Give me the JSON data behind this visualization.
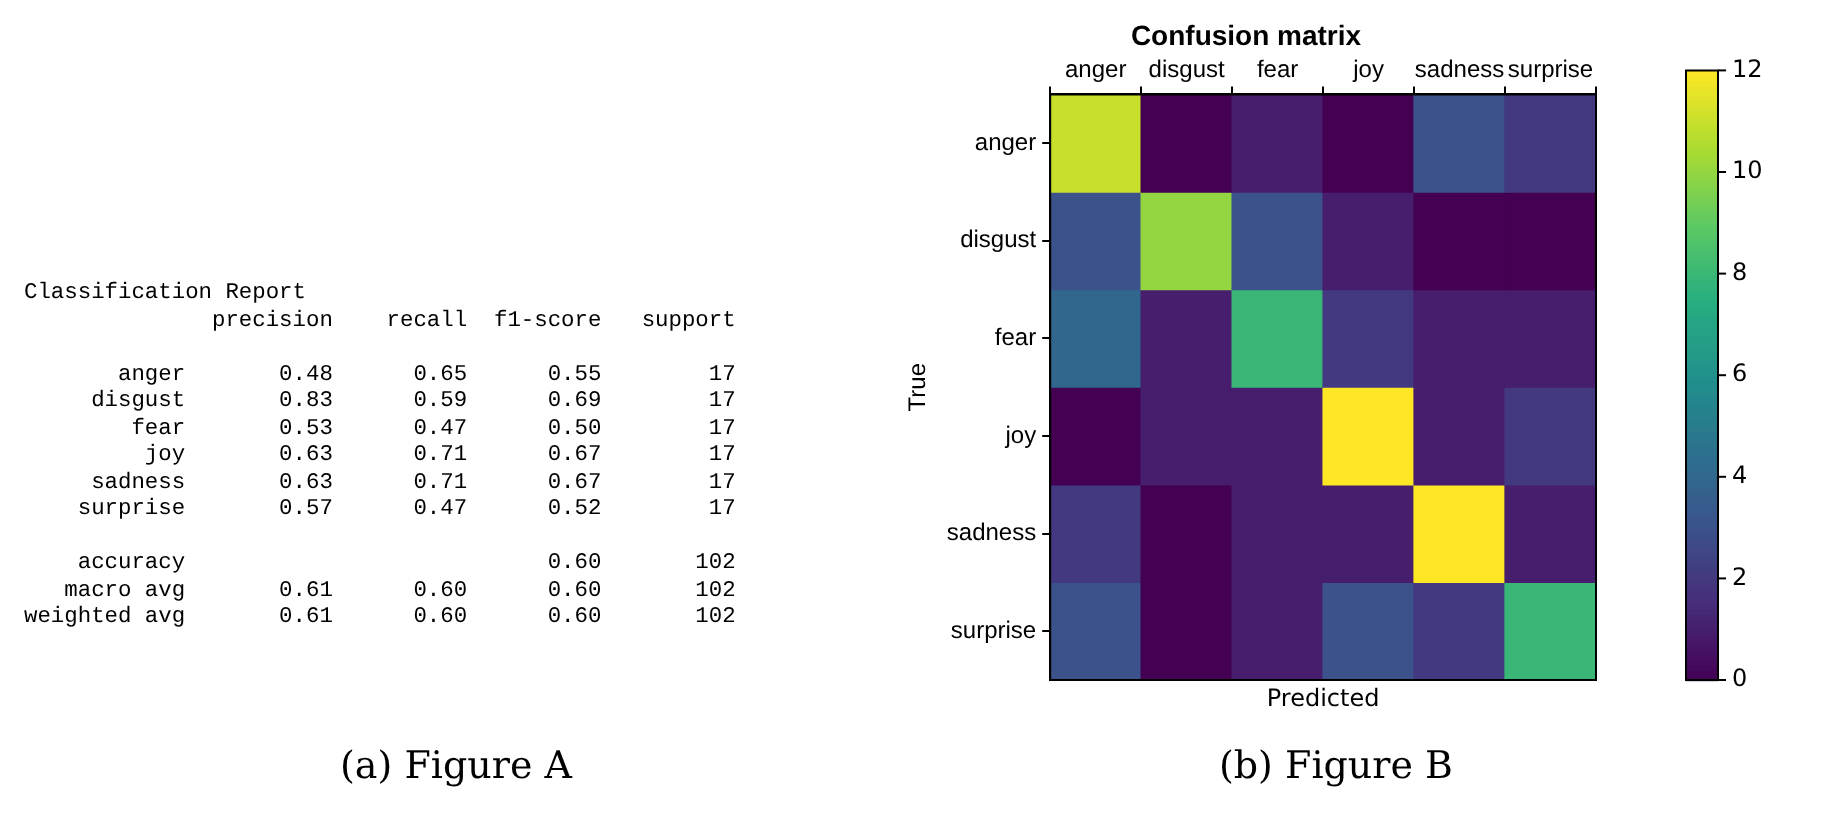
{
  "chart_data": [
    {
      "type": "other",
      "title": "Classification Report",
      "annotations": [
        "              precision    recall  f1-score   support",
        "       anger       0.48      0.65      0.55        17",
        "     disgust       0.83      0.59      0.69        17",
        "        fear       0.53      0.47      0.50        17",
        "         joy       0.63      0.71      0.67        17",
        "     sadness       0.63      0.71      0.67        17",
        "    surprise       0.57      0.47      0.52        17",
        "    accuracy                           0.60       102",
        "   macro avg       0.61      0.60      0.60       102",
        "weighted avg       0.61      0.60      0.60       102",
        "(a) Figure A"
      ]
    },
    {
      "type": "heatmap",
      "title": "Confusion matrix",
      "xlabel": "Predicted",
      "ylabel": "True",
      "categories": [
        "anger",
        "disgust",
        "fear",
        "joy",
        "sadness",
        "surprise"
      ],
      "y_categories": [
        "anger",
        "disgust",
        "fear",
        "joy",
        "sadness",
        "surprise"
      ],
      "cells": [
        [
          11,
          0,
          1,
          0,
          3,
          2
        ],
        [
          3,
          10,
          3,
          1,
          0,
          0
        ],
        [
          4,
          1,
          8,
          2,
          1,
          1
        ],
        [
          0,
          1,
          1,
          12,
          1,
          2
        ],
        [
          2,
          0,
          1,
          1,
          12,
          1
        ],
        [
          3,
          0,
          1,
          3,
          2,
          8
        ]
      ],
      "clim": [
        0,
        12
      ],
      "cticks": [
        0,
        2,
        4,
        6,
        8,
        10,
        12
      ],
      "annotations": [
        "(b) Figure B"
      ]
    }
  ]
}
